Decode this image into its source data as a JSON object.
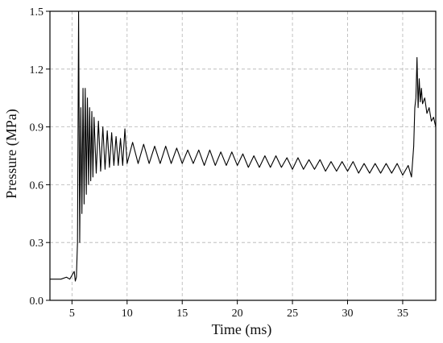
{
  "chart_data": {
    "type": "line",
    "title": "",
    "xlabel": "Time (ms)",
    "ylabel": "Pressure (MPa)",
    "xlim": [
      3,
      38
    ],
    "ylim": [
      0,
      1.5
    ],
    "xticks": [
      5,
      10,
      15,
      20,
      25,
      30,
      35
    ],
    "yticks": [
      0.0,
      0.3,
      0.6,
      0.9,
      1.2,
      1.5
    ],
    "xtick_labels": [
      "5",
      "10",
      "15",
      "20",
      "25",
      "30",
      "35"
    ],
    "ytick_labels": [
      "0.0",
      "0.3",
      "0.6",
      "0.9",
      "1.2",
      "1.5"
    ],
    "grid": true,
    "legend": "none",
    "line_color": "#000000",
    "series": [
      {
        "points": [
          [
            3.0,
            0.11
          ],
          [
            3.5,
            0.11
          ],
          [
            4.0,
            0.11
          ],
          [
            4.5,
            0.12
          ],
          [
            4.8,
            0.11
          ],
          [
            5.0,
            0.13
          ],
          [
            5.2,
            0.15
          ],
          [
            5.3,
            0.1
          ],
          [
            5.4,
            0.12
          ],
          [
            5.5,
            0.3
          ],
          [
            5.6,
            1.5
          ],
          [
            5.7,
            0.3
          ],
          [
            5.8,
            1.0
          ],
          [
            5.9,
            0.45
          ],
          [
            6.0,
            1.1
          ],
          [
            6.1,
            0.5
          ],
          [
            6.2,
            1.1
          ],
          [
            6.3,
            0.55
          ],
          [
            6.4,
            1.05
          ],
          [
            6.5,
            0.6
          ],
          [
            6.6,
            1.0
          ],
          [
            6.7,
            0.62
          ],
          [
            6.8,
            0.98
          ],
          [
            6.9,
            0.64
          ],
          [
            7.0,
            0.95
          ],
          [
            7.2,
            0.66
          ],
          [
            7.4,
            0.93
          ],
          [
            7.6,
            0.67
          ],
          [
            7.8,
            0.9
          ],
          [
            8.0,
            0.68
          ],
          [
            8.2,
            0.88
          ],
          [
            8.4,
            0.69
          ],
          [
            8.6,
            0.87
          ],
          [
            8.8,
            0.7
          ],
          [
            9.0,
            0.85
          ],
          [
            9.2,
            0.7
          ],
          [
            9.4,
            0.84
          ],
          [
            9.6,
            0.7
          ],
          [
            9.8,
            0.89
          ],
          [
            10.0,
            0.71
          ],
          [
            10.5,
            0.82
          ],
          [
            11.0,
            0.71
          ],
          [
            11.5,
            0.81
          ],
          [
            12.0,
            0.71
          ],
          [
            12.5,
            0.8
          ],
          [
            13.0,
            0.71
          ],
          [
            13.5,
            0.8
          ],
          [
            14.0,
            0.71
          ],
          [
            14.5,
            0.79
          ],
          [
            15.0,
            0.71
          ],
          [
            15.5,
            0.78
          ],
          [
            16.0,
            0.71
          ],
          [
            16.5,
            0.78
          ],
          [
            17.0,
            0.7
          ],
          [
            17.5,
            0.78
          ],
          [
            18.0,
            0.7
          ],
          [
            18.5,
            0.77
          ],
          [
            19.0,
            0.7
          ],
          [
            19.5,
            0.77
          ],
          [
            20.0,
            0.7
          ],
          [
            20.5,
            0.76
          ],
          [
            21.0,
            0.69
          ],
          [
            21.5,
            0.75
          ],
          [
            22.0,
            0.69
          ],
          [
            22.5,
            0.75
          ],
          [
            23.0,
            0.69
          ],
          [
            23.5,
            0.75
          ],
          [
            24.0,
            0.69
          ],
          [
            24.5,
            0.74
          ],
          [
            25.0,
            0.68
          ],
          [
            25.5,
            0.74
          ],
          [
            26.0,
            0.68
          ],
          [
            26.5,
            0.73
          ],
          [
            27.0,
            0.68
          ],
          [
            27.5,
            0.73
          ],
          [
            28.0,
            0.67
          ],
          [
            28.5,
            0.72
          ],
          [
            29.0,
            0.67
          ],
          [
            29.5,
            0.72
          ],
          [
            30.0,
            0.67
          ],
          [
            30.5,
            0.72
          ],
          [
            31.0,
            0.66
          ],
          [
            31.5,
            0.71
          ],
          [
            32.0,
            0.66
          ],
          [
            32.5,
            0.71
          ],
          [
            33.0,
            0.66
          ],
          [
            33.5,
            0.71
          ],
          [
            34.0,
            0.66
          ],
          [
            34.5,
            0.71
          ],
          [
            35.0,
            0.65
          ],
          [
            35.5,
            0.7
          ],
          [
            35.8,
            0.64
          ],
          [
            36.0,
            0.8
          ],
          [
            36.1,
            1.0
          ],
          [
            36.2,
            1.05
          ],
          [
            36.3,
            1.26
          ],
          [
            36.4,
            1.0
          ],
          [
            36.5,
            1.15
          ],
          [
            36.6,
            1.03
          ],
          [
            36.7,
            1.1
          ],
          [
            36.8,
            1.02
          ],
          [
            37.0,
            1.05
          ],
          [
            37.2,
            0.97
          ],
          [
            37.4,
            1.0
          ],
          [
            37.6,
            0.93
          ],
          [
            37.8,
            0.95
          ],
          [
            38.0,
            0.9
          ]
        ]
      }
    ]
  }
}
